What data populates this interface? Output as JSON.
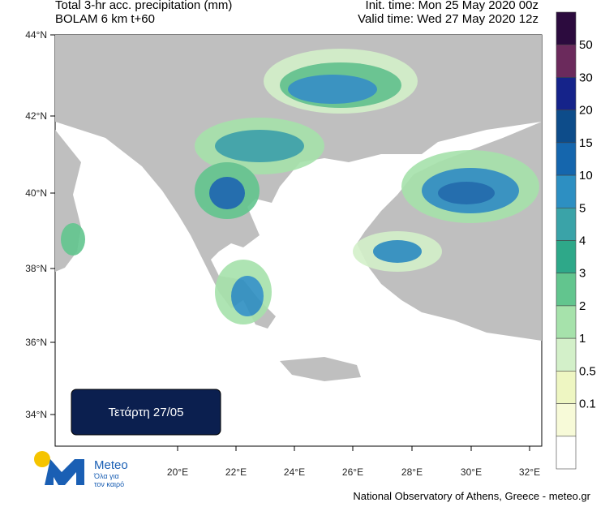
{
  "header": {
    "title": "Total 3-hr acc. precipitation (mm)",
    "subtitle": "BOLAM 6 km t+60",
    "init_time": "Init. time: Mon 25 May 2020 00z",
    "valid_time": "Valid time: Wed 27 May 2020 12z"
  },
  "map": {
    "lat_ticks": [
      "44°N",
      "42°N",
      "40°N",
      "38°N",
      "36°N",
      "34°N"
    ],
    "lon_ticks": [
      "20°E",
      "22°E",
      "24°E",
      "26°E",
      "28°E",
      "30°E",
      "32°E"
    ],
    "day_label": "Τετάρτη 27/05"
  },
  "colorbar": {
    "colors": [
      "#2c0b3e",
      "#6b2a5c",
      "#15238a",
      "#0d4c8a",
      "#1566ad",
      "#2d8fc2",
      "#3aa3a8",
      "#2ea889",
      "#62c58e",
      "#a6e2ab",
      "#d3f0c9",
      "#eef6c2",
      "#f7fad8",
      "#ffffff"
    ],
    "labels": [
      "50",
      "30",
      "20",
      "15",
      "10",
      "5",
      "4",
      "3",
      "2",
      "1",
      "0.5",
      "0.1"
    ]
  },
  "logo": {
    "name": "Meteo",
    "tagline_1": "Όλα για",
    "tagline_2": "τον καιρό"
  },
  "footer": "National Observatory of Athens, Greece - meteo.gr"
}
